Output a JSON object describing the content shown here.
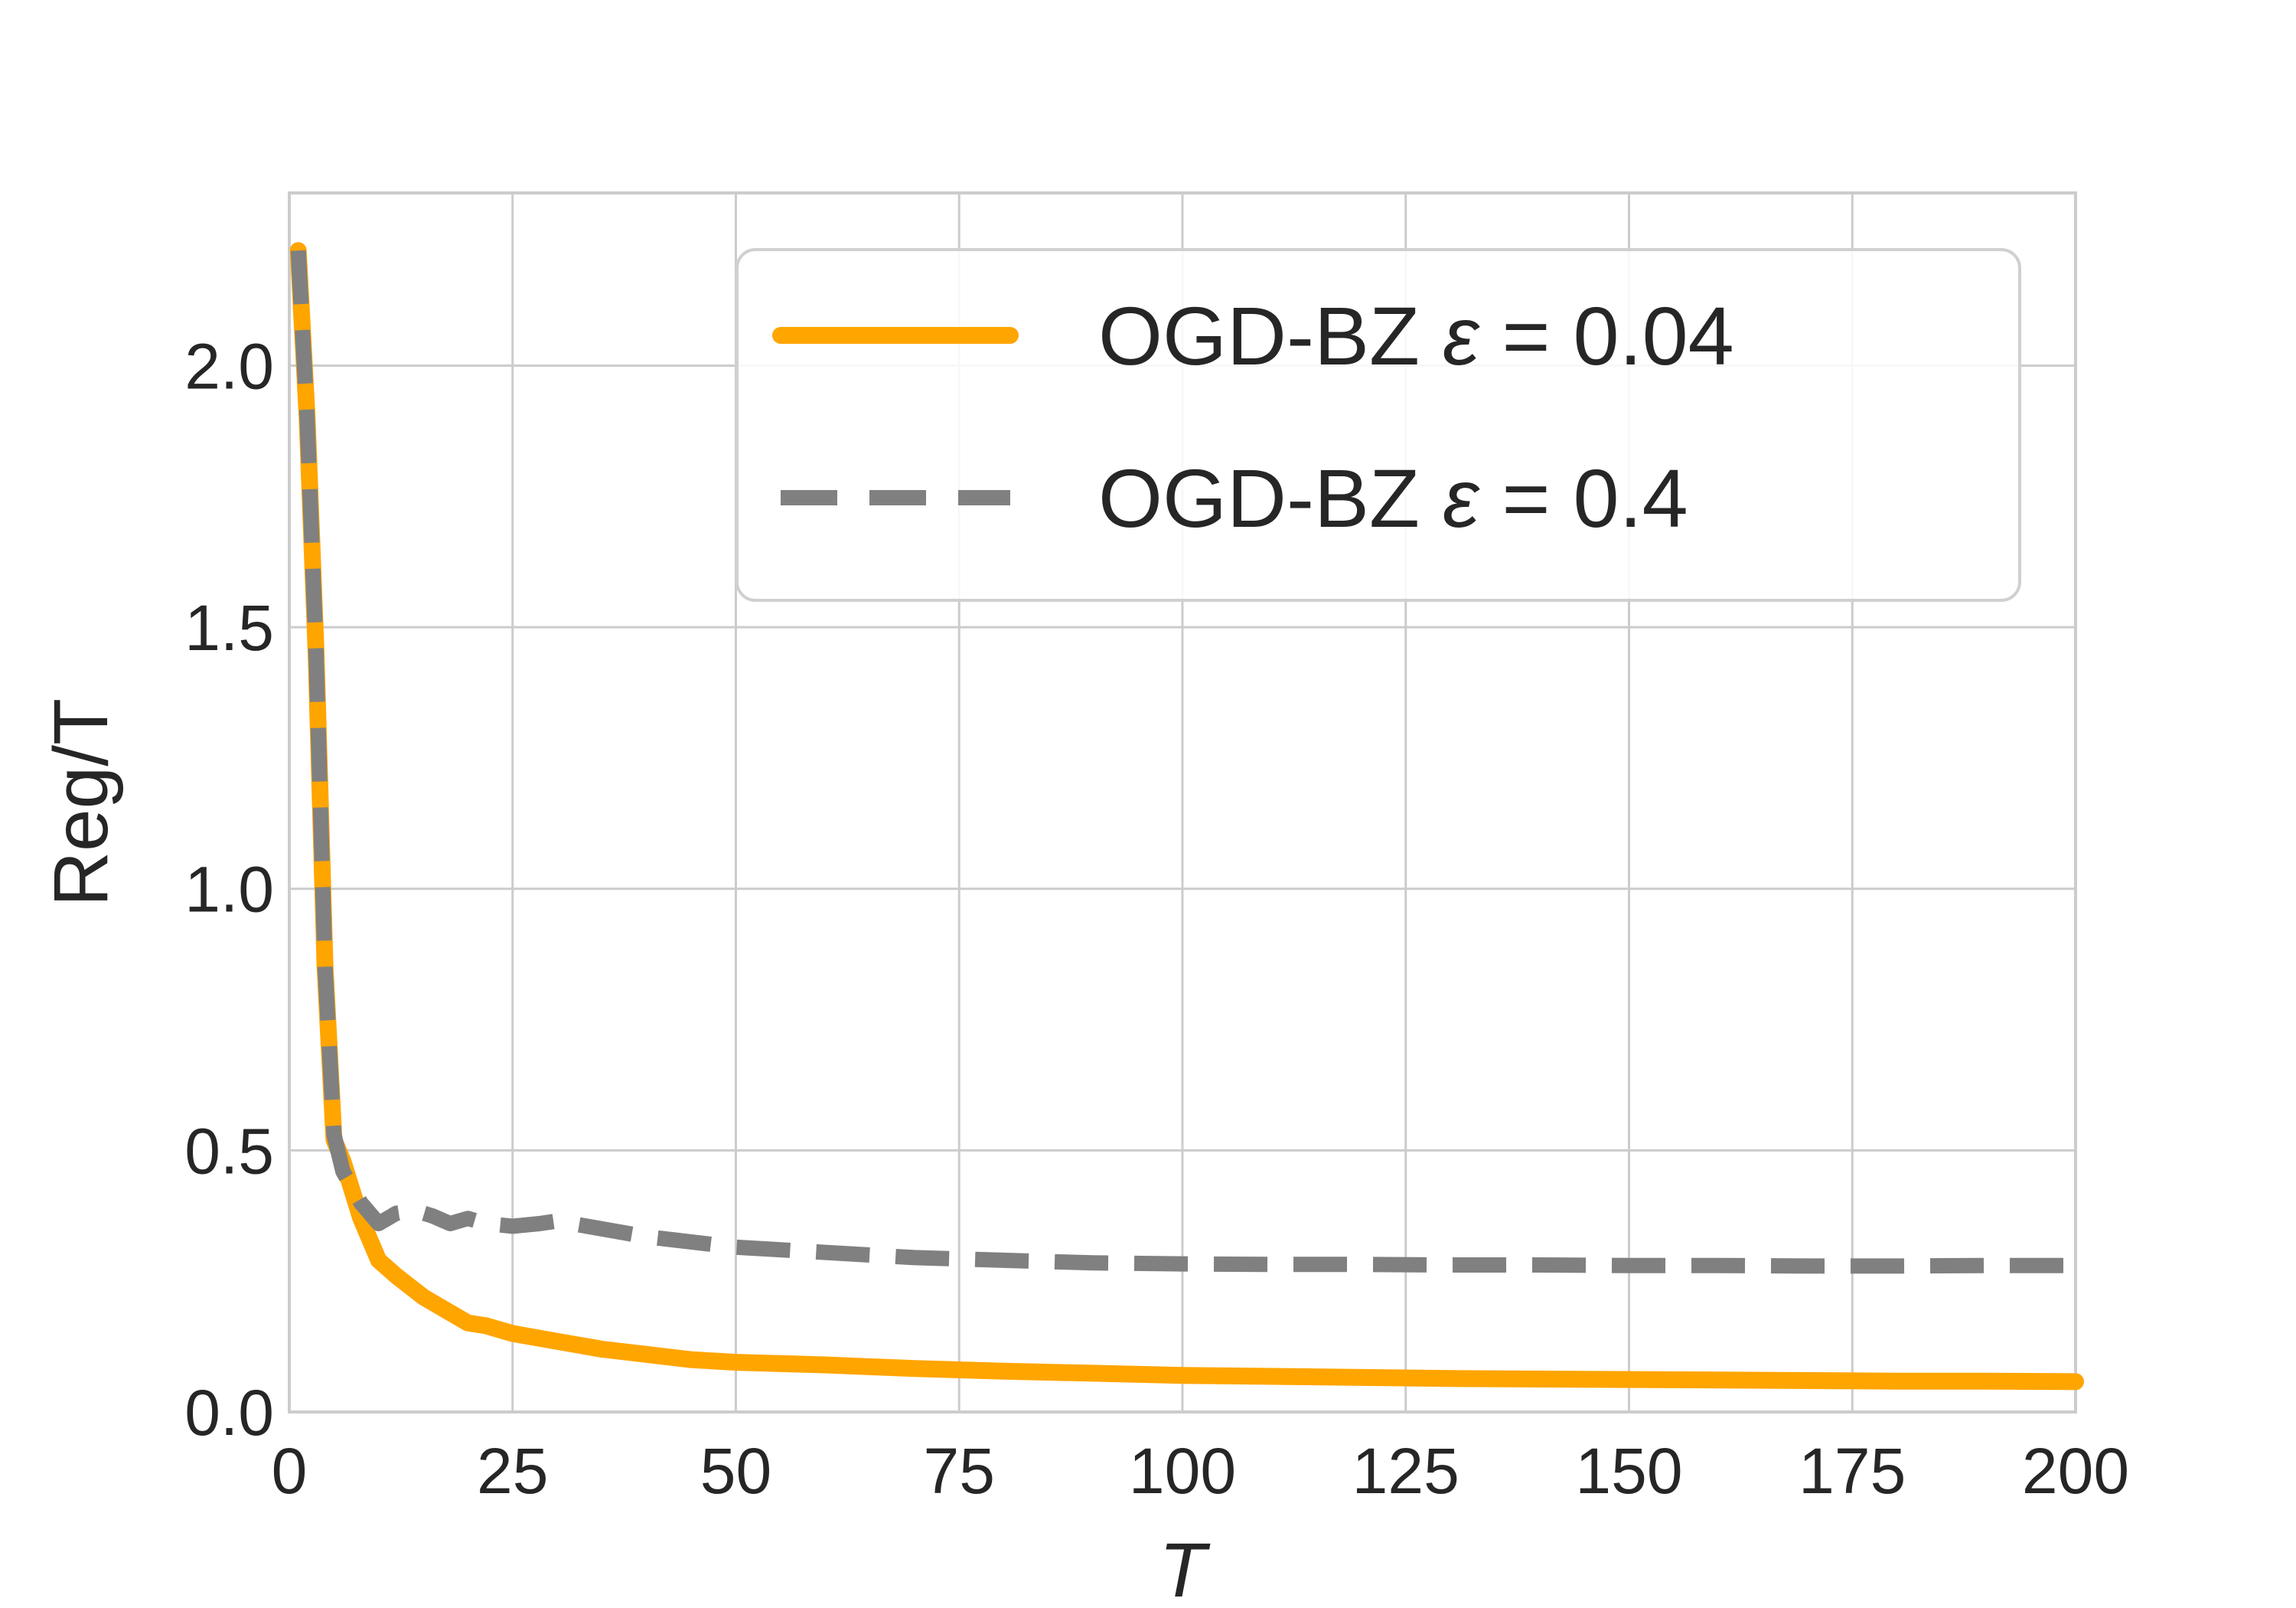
{
  "chart_data": {
    "type": "line",
    "title": "",
    "xlabel": "T",
    "ylabel": "Reg/T",
    "xlim": [
      0,
      200
    ],
    "ylim": [
      0,
      2.33
    ],
    "xticks": [
      0,
      25,
      50,
      75,
      100,
      125,
      150,
      175,
      200
    ],
    "xtick_labels": [
      "0",
      "25",
      "50",
      "75",
      "100",
      "125",
      "150",
      "175",
      "200"
    ],
    "yticks": [
      0,
      0.5,
      1.0,
      1.5,
      2.0
    ],
    "ytick_labels": [
      "0.0",
      "0.5",
      "1.0",
      "1.5",
      "2.0"
    ],
    "grid": true,
    "legend_position": "top-right",
    "series": [
      {
        "name": "OGD-BZ ε = 0.04",
        "legend_prefix": "OGD-BZ",
        "legend_symbol": "ε",
        "legend_suffix": "= 0.04",
        "color": "#FFA500",
        "style": "solid",
        "x": [
          1,
          2,
          3,
          4,
          5,
          6,
          8,
          10,
          12,
          15,
          18,
          20,
          22,
          25,
          30,
          35,
          40,
          45,
          50,
          60,
          70,
          80,
          90,
          100,
          110,
          120,
          130,
          140,
          150,
          160,
          170,
          180,
          190,
          200
        ],
        "y": [
          2.22,
          1.9,
          1.45,
          0.85,
          0.52,
          0.48,
          0.37,
          0.29,
          0.26,
          0.22,
          0.19,
          0.17,
          0.165,
          0.15,
          0.135,
          0.12,
          0.11,
          0.1,
          0.095,
          0.09,
          0.083,
          0.078,
          0.074,
          0.07,
          0.068,
          0.066,
          0.064,
          0.063,
          0.062,
          0.061,
          0.06,
          0.059,
          0.059,
          0.058
        ]
      },
      {
        "name": "OGD-BZ ε = 0.4",
        "legend_prefix": "OGD-BZ",
        "legend_symbol": "ε",
        "legend_suffix": "= 0.4",
        "color": "#808080",
        "style": "dashed",
        "x": [
          1,
          2,
          3,
          4,
          5,
          6,
          8,
          10,
          12,
          14,
          16,
          18,
          20,
          22,
          25,
          28,
          30,
          35,
          40,
          45,
          50,
          55,
          60,
          70,
          80,
          90,
          100,
          110,
          120,
          130,
          140,
          150,
          160,
          170,
          180,
          190,
          200
        ],
        "y": [
          2.22,
          1.9,
          1.45,
          0.85,
          0.53,
          0.46,
          0.4,
          0.36,
          0.38,
          0.385,
          0.375,
          0.36,
          0.37,
          0.36,
          0.355,
          0.36,
          0.365,
          0.35,
          0.335,
          0.325,
          0.315,
          0.31,
          0.305,
          0.295,
          0.29,
          0.285,
          0.283,
          0.282,
          0.282,
          0.281,
          0.281,
          0.28,
          0.28,
          0.279,
          0.279,
          0.28,
          0.28
        ]
      }
    ]
  }
}
